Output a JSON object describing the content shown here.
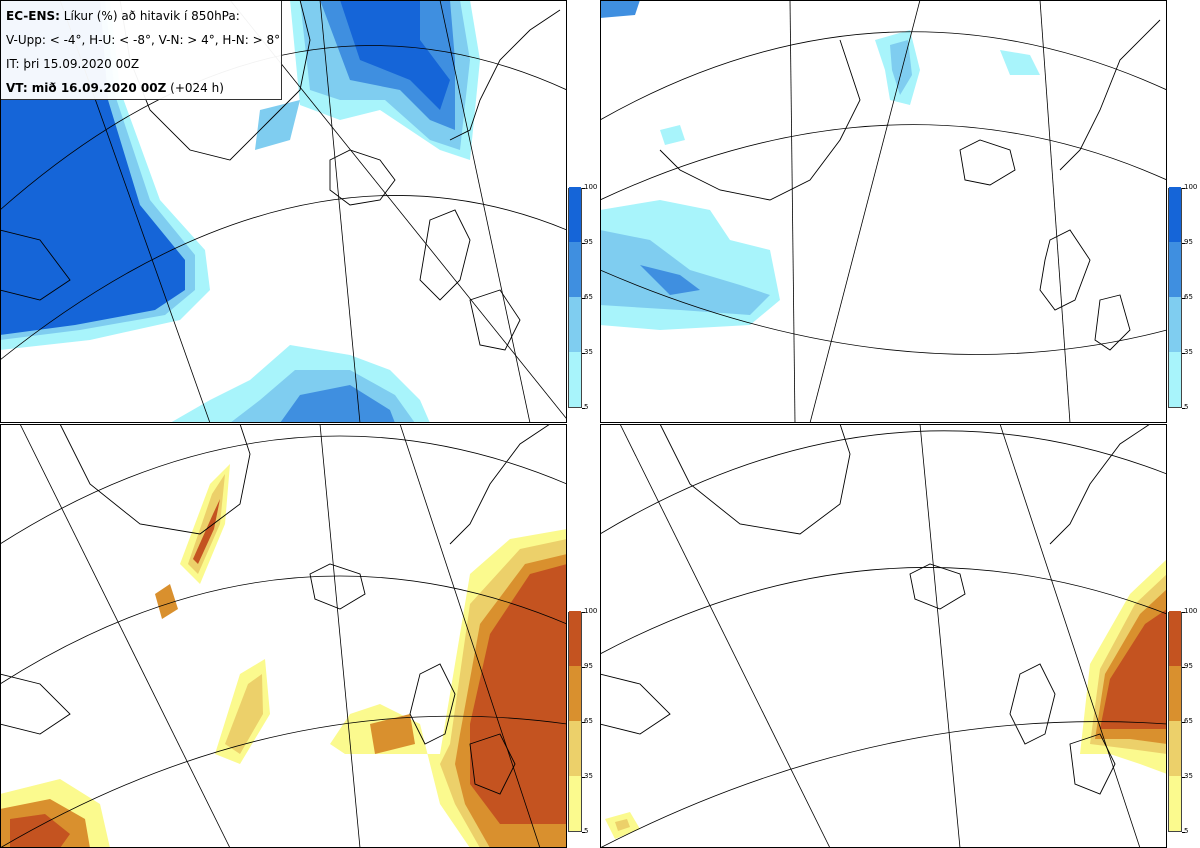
{
  "header": {
    "model": "EC-ENS:",
    "title": "Líkur (%) að hitavik í 850hPa:",
    "thresholds": "V-Upp: < -4°, H-U: < -8°, V-N: > 4°, H-N: > 8°",
    "initial_time": "IT: þri 15.09.2020 00Z",
    "valid_label": "VT: mið 16.09.2020 00Z",
    "lead": "(+024 h)"
  },
  "colorbar": {
    "ticks": [
      "100",
      "95",
      "65",
      "35",
      "5"
    ],
    "cold_colors": [
      "#1565d8",
      "#3f8fe0",
      "#7fcdf0",
      "#a8f4fb"
    ],
    "warm_colors": [
      "#c45320",
      "#d9902e",
      "#ecd06a",
      "#fbfa8e"
    ]
  },
  "panels": [
    {
      "id": "V-Upp",
      "scheme": "cold"
    },
    {
      "id": "H-U",
      "scheme": "cold"
    },
    {
      "id": "V-N",
      "scheme": "warm"
    },
    {
      "id": "H-N",
      "scheme": "warm"
    }
  ]
}
